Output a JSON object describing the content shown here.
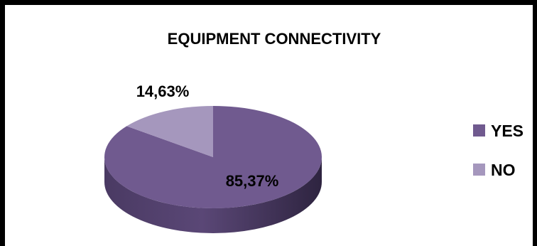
{
  "chart_data": {
    "type": "pie",
    "title": "EQUIPMENT CONNECTIVITY",
    "categories": [
      "YES",
      "NO"
    ],
    "values": [
      85.37,
      14.63
    ],
    "data_labels": [
      "85,37%",
      "14,63%"
    ],
    "colors": [
      "#705A8F",
      "#A597BD"
    ],
    "legend_position": "right",
    "style": "3d"
  }
}
